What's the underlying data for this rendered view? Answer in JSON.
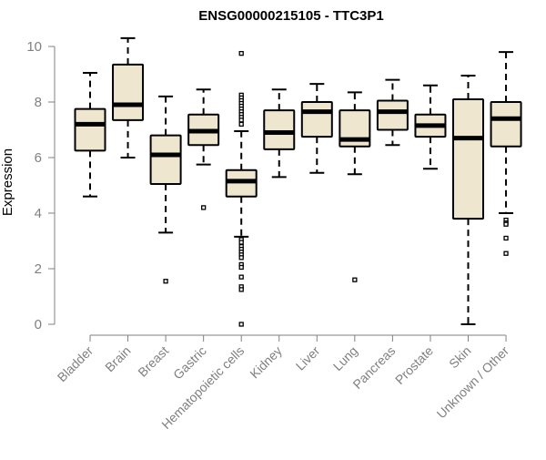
{
  "chart_data": {
    "type": "box",
    "title": "ENSG00000215105 - TTC3P1",
    "ylabel": "Expression",
    "xlabel": "",
    "ylim": [
      0,
      10
    ],
    "yticks": [
      0,
      2,
      4,
      6,
      8,
      10
    ],
    "categories": [
      "Bladder",
      "Brain",
      "Breast",
      "Gastric",
      "Hematopoietic cells",
      "Kidney",
      "Liver",
      "Lung",
      "Pancreas",
      "Prostate",
      "Skin",
      "Unknown / Other"
    ],
    "boxes": [
      {
        "whisker_low": 4.6,
        "q1": 6.25,
        "median": 7.2,
        "q3": 7.75,
        "whisker_high": 9.05,
        "outliers": []
      },
      {
        "whisker_low": 6.0,
        "q1": 7.35,
        "median": 7.9,
        "q3": 9.35,
        "whisker_high": 10.3,
        "outliers": []
      },
      {
        "whisker_low": 3.3,
        "q1": 5.05,
        "median": 6.1,
        "q3": 6.8,
        "whisker_high": 8.2,
        "outliers": [
          1.55
        ]
      },
      {
        "whisker_low": 5.75,
        "q1": 6.45,
        "median": 6.95,
        "q3": 7.55,
        "whisker_high": 8.45,
        "outliers": [
          4.2
        ]
      },
      {
        "whisker_low": 3.15,
        "q1": 4.6,
        "median": 5.15,
        "q3": 5.55,
        "whisker_high": 6.95,
        "outliers": [
          9.75,
          8.25,
          8.15,
          8.05,
          7.95,
          7.85,
          7.75,
          7.65,
          7.55,
          7.45,
          7.35,
          7.2,
          3.05,
          2.95,
          2.8,
          2.7,
          2.6,
          2.5,
          2.4,
          2.15,
          2.05,
          1.7,
          1.35,
          1.25,
          0.0
        ]
      },
      {
        "whisker_low": 5.3,
        "q1": 6.3,
        "median": 6.9,
        "q3": 7.7,
        "whisker_high": 8.45,
        "outliers": []
      },
      {
        "whisker_low": 5.45,
        "q1": 6.75,
        "median": 7.65,
        "q3": 8.0,
        "whisker_high": 8.65,
        "outliers": []
      },
      {
        "whisker_low": 5.4,
        "q1": 6.4,
        "median": 6.65,
        "q3": 7.7,
        "whisker_high": 8.35,
        "outliers": [
          1.6
        ]
      },
      {
        "whisker_low": 6.45,
        "q1": 7.0,
        "median": 7.65,
        "q3": 8.05,
        "whisker_high": 8.8,
        "outliers": []
      },
      {
        "whisker_low": 5.6,
        "q1": 6.75,
        "median": 7.15,
        "q3": 7.55,
        "whisker_high": 8.6,
        "outliers": []
      },
      {
        "whisker_low": 0.0,
        "q1": 3.8,
        "median": 6.7,
        "q3": 8.1,
        "whisker_high": 8.95,
        "outliers": []
      },
      {
        "whisker_low": 4.0,
        "q1": 6.4,
        "median": 7.4,
        "q3": 8.0,
        "whisker_high": 9.8,
        "outliers": [
          3.75,
          3.65,
          3.6,
          3.1,
          2.55
        ]
      }
    ],
    "grid": false,
    "legend": "none",
    "colors": {
      "box_fill": "#efe6cf",
      "box_stroke": "#000000",
      "median": "#000000",
      "axis": "#808080",
      "tick_label": "#808080",
      "title": "#000000"
    }
  }
}
